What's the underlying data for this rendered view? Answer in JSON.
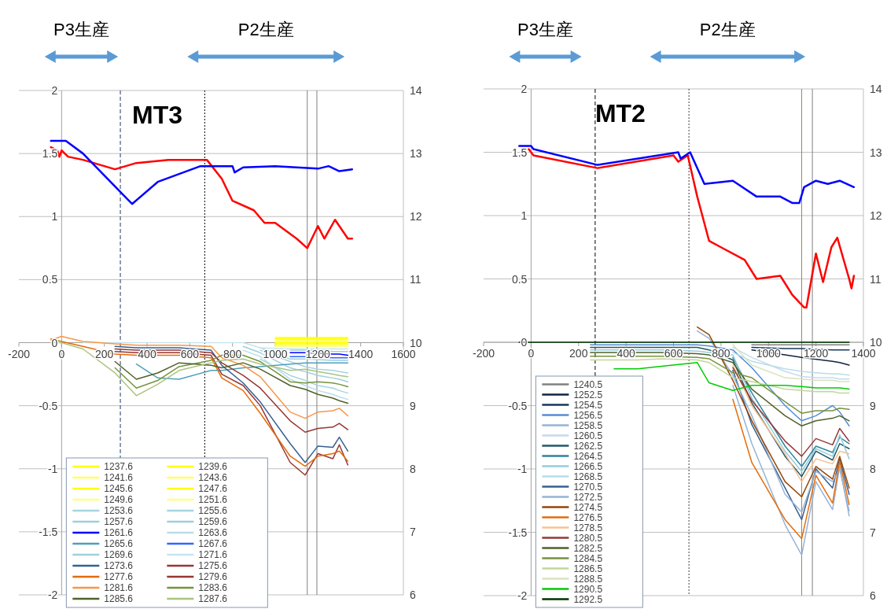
{
  "chart_data": [
    {
      "type": "line",
      "title": "MT3",
      "annotations": [
        "P3生産",
        "P2生産"
      ],
      "x": [
        -50,
        0,
        100,
        250,
        350,
        450,
        550,
        700,
        750,
        850,
        930,
        1070,
        1140,
        1200,
        1270,
        1300,
        1340
      ],
      "xlim": [
        -200,
        1600
      ],
      "xticks": [
        -200,
        0,
        200,
        400,
        600,
        800,
        1000,
        1200,
        1400,
        1600
      ],
      "ylim": [
        -2,
        2
      ],
      "yticks": [
        -2,
        -1.5,
        -1,
        -0.5,
        0,
        0.5,
        1,
        1.5,
        2
      ],
      "y2lim": [
        6,
        14
      ],
      "y2ticks": [
        6,
        7,
        8,
        9,
        10,
        11,
        12,
        13,
        14
      ],
      "grid": "y",
      "legend": "bottom left",
      "ref_lines": [
        {
          "axis": "x",
          "value": 275,
          "color": "#1f3864",
          "line_style": "dashed"
        },
        {
          "axis": "x",
          "value": 670,
          "color": "#000000",
          "line_style": "dotted"
        },
        {
          "axis": "x",
          "value": 1150,
          "color": "#808080",
          "line_style": "solid"
        },
        {
          "axis": "x",
          "value": 1195,
          "color": "#808080",
          "line_style": "solid"
        }
      ],
      "series": [
        {
          "name": "1237.6",
          "color": "#ffff00",
          "x": [
            1000,
            1100,
            1200,
            1300,
            1340
          ],
          "values": [
            0.04,
            0.04,
            0.04,
            0.04,
            0.04
          ]
        },
        {
          "name": "1239.6",
          "color": "#ffff00",
          "x": [
            1000,
            1100,
            1200,
            1300,
            1340
          ],
          "values": [
            0.03,
            0.03,
            0.03,
            0.03,
            0.03
          ]
        },
        {
          "name": "1241.6",
          "color": "#ffff66",
          "x": [
            1000,
            1100,
            1200,
            1300,
            1340
          ],
          "values": [
            0.02,
            0.02,
            0.02,
            0.02,
            0.02
          ]
        },
        {
          "name": "1243.6",
          "color": "#ffff66",
          "x": [
            1000,
            1100,
            1200,
            1300,
            1340
          ],
          "values": [
            0.01,
            0.01,
            0.01,
            0.01,
            0.01
          ]
        },
        {
          "name": "1245.6",
          "color": "#ffff00",
          "x": [
            1000,
            1100,
            1200,
            1300,
            1340
          ],
          "values": [
            0,
            0,
            0,
            0,
            0
          ]
        },
        {
          "name": "1247.6",
          "color": "#ffff00",
          "x": [
            1000,
            1100,
            1200,
            1300,
            1340
          ],
          "values": [
            -0.01,
            -0.01,
            -0.01,
            -0.01,
            -0.01
          ]
        },
        {
          "name": "1249.6",
          "color": "#ffff80",
          "x": [
            1000,
            1100,
            1200,
            1300,
            1340
          ],
          "values": [
            -0.02,
            -0.02,
            -0.02,
            -0.02,
            -0.02
          ]
        },
        {
          "name": "1251.6",
          "color": "#ffff80",
          "x": [
            1000,
            1100,
            1200,
            1300,
            1340
          ],
          "values": [
            -0.03,
            -0.03,
            -0.03,
            -0.03,
            -0.03
          ]
        },
        {
          "name": "1253.6",
          "color": "#a5d5e0",
          "values": [
            null,
            null,
            null,
            null,
            null,
            null,
            null,
            null,
            null,
            null,
            -0.13,
            -0.26,
            -0.3,
            -0.34,
            -0.36,
            -0.38,
            -0.4
          ]
        },
        {
          "name": "1255.6",
          "color": "#a5d5e0",
          "values": [
            null,
            null,
            null,
            null,
            null,
            null,
            null,
            null,
            null,
            null,
            -0.06,
            -0.15,
            -0.19,
            -0.21,
            -0.22,
            -0.23,
            -0.24
          ]
        },
        {
          "name": "1257.6",
          "color": "#9fcfdc",
          "values": [
            null,
            null,
            null,
            null,
            null,
            null,
            null,
            null,
            null,
            -0.03,
            -0.08,
            -0.2,
            -0.23,
            -0.26,
            -0.28,
            -0.29,
            -0.31
          ]
        },
        {
          "name": "1259.6",
          "color": "#9fcfdc",
          "x": [
            930,
            1070,
            1140,
            1270,
            1300,
            1340
          ],
          "values": [
            -0.04,
            -0.13,
            -0.13,
            -0.14,
            -0.14,
            -0.14
          ]
        },
        {
          "name": "1261.6",
          "color": "#0000ff",
          "x": [
            1070,
            1140,
            1270,
            1300,
            1340
          ],
          "values": [
            -0.08,
            -0.08,
            -0.09,
            -0.09,
            -0.1
          ]
        },
        {
          "name": "1263.6",
          "color": "#b8dde8",
          "values": [
            null,
            null,
            null,
            null,
            null,
            null,
            null,
            null,
            null,
            -0.06,
            -0.11,
            -0.29,
            -0.34,
            -0.38,
            -0.41,
            -0.43,
            -0.45
          ]
        },
        {
          "name": "1265.6",
          "color": "#4f9fbc",
          "values": [
            null,
            null,
            null,
            null,
            -0.17,
            -0.28,
            -0.29,
            -0.22,
            -0.22,
            -0.2,
            -0.19,
            -0.17,
            -0.16,
            -0.16,
            -0.16,
            -0.16,
            -0.16
          ]
        },
        {
          "name": "1267.6",
          "color": "#3366ff",
          "x": [
            1070,
            1140,
            1270,
            1300,
            1340
          ],
          "values": [
            -0.11,
            -0.11,
            -0.12,
            -0.12,
            -0.12
          ]
        },
        {
          "name": "1269.6",
          "color": "#9fd0dc",
          "x": [
            1070,
            1140,
            1270,
            1300,
            1340
          ],
          "values": [
            -0.06,
            -0.06,
            -0.07,
            -0.07,
            -0.07
          ]
        },
        {
          "name": "1271.6",
          "color": "#c5e5f0",
          "values": [
            null,
            null,
            0,
            0,
            0,
            0,
            0,
            0,
            0,
            0,
            -0.04,
            -0.05,
            -0.05,
            -0.05,
            -0.05,
            -0.05,
            -0.05
          ]
        },
        {
          "name": "1273.6",
          "color": "#366092",
          "values": [
            null,
            null,
            null,
            -0.03,
            -0.04,
            -0.04,
            -0.04,
            -0.06,
            -0.18,
            -0.32,
            -0.47,
            -0.8,
            -0.95,
            -0.82,
            -0.83,
            -0.75,
            -0.86
          ]
        },
        {
          "name": "1275.6",
          "color": "#963634",
          "values": [
            null,
            null,
            null,
            -0.07,
            -0.08,
            -0.08,
            -0.08,
            -0.1,
            -0.25,
            -0.34,
            -0.5,
            -0.95,
            -1.05,
            -0.88,
            -0.92,
            -0.81,
            -0.97
          ]
        },
        {
          "name": "1277.6",
          "color": "#e26b0a",
          "values": [
            0.03,
            0.01,
            -0.03,
            -0.09,
            -0.1,
            -0.1,
            -0.1,
            -0.12,
            -0.28,
            -0.38,
            -0.56,
            -0.9,
            -0.98,
            -0.9,
            -0.88,
            -0.86,
            -0.94
          ]
        },
        {
          "name": "1279.6",
          "color": "#963634",
          "values": [
            null,
            null,
            null,
            -0.05,
            -0.06,
            -0.06,
            -0.06,
            -0.08,
            -0.16,
            -0.26,
            -0.36,
            -0.62,
            -0.71,
            -0.68,
            -0.67,
            -0.64,
            -0.69
          ]
        },
        {
          "name": "1281.6",
          "color": "#f79646",
          "values": [
            0.02,
            0.05,
            0.01,
            -0.01,
            -0.02,
            -0.02,
            -0.02,
            -0.03,
            -0.12,
            -0.18,
            -0.27,
            -0.55,
            -0.6,
            -0.55,
            -0.54,
            -0.52,
            -0.58
          ]
        },
        {
          "name": "1283.6",
          "color": "#76933c",
          "values": [
            null,
            null,
            null,
            -0.2,
            -0.36,
            -0.3,
            -0.19,
            -0.14,
            -0.1,
            -0.1,
            -0.15,
            -0.31,
            -0.32,
            -0.31,
            -0.32,
            -0.33,
            -0.35
          ]
        },
        {
          "name": "1285.6",
          "color": "#4f6228",
          "values": [
            null,
            null,
            null,
            -0.15,
            -0.29,
            -0.24,
            -0.16,
            -0.18,
            -0.2,
            -0.16,
            -0.21,
            -0.34,
            -0.37,
            -0.41,
            -0.44,
            -0.46,
            -0.48
          ]
        },
        {
          "name": "1287.6",
          "color": "#a9c47f",
          "values": [
            0,
            0,
            -0.05,
            -0.24,
            -0.42,
            -0.33,
            -0.22,
            -0.16,
            -0.14,
            -0.13,
            -0.17,
            -0.22,
            -0.21,
            -0.23,
            -0.25,
            -0.26,
            -0.27
          ]
        },
        {
          "color": "#ff0000",
          "axis": "y2",
          "x": [
            -50,
            -20,
            -10,
            0,
            30,
            100,
            250,
            350,
            500,
            680,
            750,
            800,
            900,
            950,
            1000,
            1100,
            1150,
            1200,
            1230,
            1280,
            1340,
            1360
          ],
          "values": [
            13.1,
            13.05,
            12.95,
            13.05,
            12.95,
            12.9,
            12.75,
            12.85,
            12.9,
            12.9,
            12.6,
            12.25,
            12.1,
            11.9,
            11.9,
            11.65,
            11.5,
            11.85,
            11.65,
            11.95,
            11.65,
            11.65
          ]
        },
        {
          "color": "#0000ff",
          "axis": "y2",
          "x": [
            -50,
            20,
            100,
            330,
            450,
            650,
            750,
            800,
            810,
            850,
            1000,
            1200,
            1250,
            1300,
            1360
          ],
          "values": [
            13.2,
            13.2,
            13.0,
            12.2,
            12.55,
            12.8,
            12.8,
            12.8,
            12.7,
            12.78,
            12.8,
            12.76,
            12.8,
            12.72,
            12.75
          ]
        }
      ]
    },
    {
      "type": "line",
      "title": "MT2",
      "annotations": [
        "P3生産",
        "P2生産"
      ],
      "x": [
        -50,
        0,
        100,
        250,
        350,
        450,
        550,
        700,
        750,
        850,
        930,
        1070,
        1140,
        1200,
        1270,
        1300,
        1340
      ],
      "xlim": [
        -200,
        1400
      ],
      "xticks": [
        -200,
        0,
        200,
        400,
        600,
        800,
        1000,
        1200,
        1400
      ],
      "ylim": [
        -2,
        2
      ],
      "yticks": [
        -2,
        -1.5,
        -1,
        -0.5,
        0,
        0.5,
        1,
        1.5,
        2
      ],
      "y2lim": [
        6,
        14
      ],
      "y2ticks": [
        6,
        7,
        8,
        9,
        10,
        11,
        12,
        13,
        14
      ],
      "grid": "y",
      "legend": "bottom left",
      "ref_lines": [
        {
          "axis": "x",
          "value": 270,
          "color": "#000000",
          "line_style": "dashed"
        },
        {
          "axis": "x",
          "value": 665,
          "color": "#404040",
          "line_style": "dotted"
        },
        {
          "axis": "x",
          "value": 1140,
          "color": "#9c8a4a",
          "line_style": "solid"
        },
        {
          "axis": "x",
          "value": 1185,
          "color": "#808080",
          "line_style": "solid"
        }
      ],
      "series": [
        {
          "name": "1240.5",
          "color": "#808080",
          "values": [
            null,
            null,
            null,
            null,
            null,
            null,
            null,
            null,
            null,
            null,
            -0.02,
            -0.02,
            -0.02,
            -0.02,
            -0.02,
            -0.02,
            -0.02
          ]
        },
        {
          "name": "1252.5",
          "color": "#0f243e",
          "x": [
            930,
            1070,
            1140,
            1270,
            1300,
            1340
          ],
          "values": [
            -0.06,
            -0.1,
            -0.12,
            -0.15,
            -0.16,
            -0.18
          ]
        },
        {
          "name": "1254.5",
          "color": "#17375e",
          "x": [
            930,
            1070,
            1140,
            1270,
            1300,
            1340
          ],
          "values": [
            -0.04,
            -0.05,
            -0.05,
            -0.06,
            -0.06,
            -0.06
          ]
        },
        {
          "name": "1256.5",
          "color": "#558ed5",
          "values": [
            null,
            null,
            null,
            -0.02,
            -0.02,
            -0.02,
            -0.02,
            -0.02,
            -0.03,
            -0.06,
            -0.2,
            -0.5,
            -0.62,
            -0.58,
            -0.5,
            -0.55,
            -0.66
          ]
        },
        {
          "name": "1258.5",
          "color": "#95b3d7",
          "values": [
            null,
            null,
            null,
            null,
            null,
            null,
            null,
            null,
            null,
            -0.34,
            -0.8,
            -1.44,
            -1.68,
            -1.1,
            -1.32,
            -0.98,
            -1.37
          ]
        },
        {
          "name": "1260.5",
          "color": "#c6d9f1",
          "values": [
            null,
            null,
            null,
            null,
            null,
            null,
            null,
            null,
            null,
            -0.04,
            -0.12,
            -0.23,
            -0.27,
            -0.28,
            -0.28,
            -0.29,
            -0.29
          ]
        },
        {
          "name": "1262.5",
          "color": "#215967",
          "values": [
            null,
            null,
            null,
            -0.04,
            -0.04,
            -0.04,
            -0.04,
            -0.04,
            -0.06,
            -0.14,
            -0.48,
            -0.9,
            -1.06,
            -0.86,
            -0.93,
            -0.8,
            -0.84
          ]
        },
        {
          "name": "1264.5",
          "color": "#31859c",
          "values": [
            null,
            null,
            null,
            null,
            null,
            null,
            null,
            null,
            null,
            -0.12,
            -0.4,
            -0.82,
            -0.98,
            -0.82,
            -0.87,
            -0.75,
            -0.8
          ]
        },
        {
          "name": "1266.5",
          "color": "#93cddd",
          "values": [
            null,
            null,
            null,
            -0.06,
            -0.06,
            -0.06,
            -0.06,
            -0.07,
            -0.08,
            -0.1,
            -0.44,
            -0.86,
            -1.02,
            -0.84,
            -0.9,
            -0.73,
            -0.92
          ]
        },
        {
          "name": "1268.5",
          "color": "#b7dee8",
          "values": [
            null,
            null,
            null,
            null,
            null,
            null,
            null,
            null,
            null,
            -0.08,
            -0.15,
            -0.21,
            -0.23,
            -0.24,
            -0.25,
            -0.25,
            -0.26
          ]
        },
        {
          "name": "1270.5",
          "color": "#366092",
          "values": [
            null,
            null,
            null,
            null,
            null,
            null,
            null,
            null,
            null,
            -0.22,
            -0.65,
            -1.15,
            -1.4,
            -1.0,
            -1.15,
            -0.92,
            -1.2
          ]
        },
        {
          "name": "1272.5",
          "color": "#95b3d7",
          "values": [
            null,
            null,
            null,
            null,
            null,
            null,
            null,
            0.09,
            0.03,
            -0.26,
            -0.58,
            -1.2,
            -1.34,
            -1.02,
            -1.1,
            -1.0,
            -1.33
          ]
        },
        {
          "name": "1274.5",
          "color": "#974706",
          "values": [
            null,
            null,
            null,
            null,
            null,
            null,
            null,
            0.12,
            0.06,
            -0.3,
            -0.62,
            -1.1,
            -1.22,
            -0.98,
            -1.08,
            -0.9,
            -1.15
          ]
        },
        {
          "name": "1276.5",
          "color": "#e46c0a",
          "values": [
            null,
            null,
            null,
            null,
            null,
            null,
            null,
            null,
            null,
            -0.45,
            -0.95,
            -1.4,
            -1.55,
            -1.05,
            -1.27,
            -0.94,
            -1.28
          ]
        },
        {
          "name": "1278.5",
          "color": "#fac090",
          "values": [
            null,
            null,
            null,
            null,
            null,
            null,
            null,
            null,
            null,
            -0.18,
            -0.5,
            -0.88,
            -1.1,
            -0.92,
            -0.96,
            -0.86,
            -0.88
          ]
        },
        {
          "name": "1280.5",
          "color": "#953735",
          "values": [
            null,
            null,
            null,
            null,
            null,
            null,
            null,
            null,
            null,
            -0.2,
            -0.46,
            -0.78,
            -0.9,
            -0.76,
            -0.81,
            -0.68,
            -0.78
          ]
        },
        {
          "name": "1282.5",
          "color": "#4f6228",
          "values": [
            null,
            null,
            null,
            -0.08,
            -0.08,
            -0.08,
            -0.08,
            -0.09,
            -0.1,
            -0.16,
            -0.37,
            -0.58,
            -0.66,
            -0.62,
            -0.6,
            -0.58,
            -0.62
          ]
        },
        {
          "name": "1284.5",
          "color": "#77933c",
          "values": [
            null,
            null,
            null,
            -0.11,
            -0.11,
            -0.11,
            -0.11,
            -0.12,
            -0.13,
            -0.24,
            -0.28,
            -0.47,
            -0.56,
            -0.54,
            -0.54,
            -0.52,
            -0.53
          ]
        },
        {
          "name": "1286.5",
          "color": "#c3d69b",
          "values": [
            null,
            null,
            null,
            -0.14,
            -0.14,
            -0.14,
            -0.13,
            -0.14,
            -0.16,
            -0.28,
            -0.31,
            -0.37,
            -0.38,
            -0.39,
            -0.39,
            -0.4,
            -0.4
          ]
        },
        {
          "name": "1288.5",
          "color": "#d7e4bd",
          "values": [
            null,
            null,
            null,
            null,
            null,
            null,
            null,
            null,
            null,
            -0.02,
            -0.18,
            -0.28,
            -0.29,
            -0.3,
            -0.3,
            -0.31,
            -0.31
          ]
        },
        {
          "name": "1290.5",
          "color": "#00cc00",
          "values": [
            null,
            null,
            null,
            null,
            -0.21,
            -0.21,
            -0.19,
            -0.16,
            -0.32,
            -0.38,
            -0.34,
            -0.34,
            -0.35,
            -0.36,
            -0.36,
            -0.36,
            -0.37
          ]
        },
        {
          "name": "1292.5",
          "color": "#003300",
          "values": [
            0,
            0,
            0,
            0,
            0,
            0,
            0,
            0,
            0,
            0,
            0,
            0,
            0,
            0,
            0,
            0,
            0
          ]
        },
        {
          "color": "#ff0000",
          "axis": "y2",
          "x": [
            -10,
            10,
            280,
            600,
            620,
            660,
            700,
            750,
            800,
            900,
            950,
            1050,
            1100,
            1150,
            1160,
            1200,
            1230,
            1265,
            1290,
            1340,
            1350,
            1360
          ],
          "values": [
            13.05,
            12.95,
            12.75,
            12.95,
            12.85,
            12.95,
            12.3,
            11.6,
            11.5,
            11.3,
            11.0,
            11.05,
            10.75,
            10.55,
            10.55,
            11.4,
            10.95,
            11.5,
            11.65,
            11.0,
            10.85,
            11.05
          ]
        },
        {
          "color": "#0000ff",
          "axis": "y2",
          "x": [
            -50,
            0,
            10,
            280,
            620,
            630,
            670,
            730,
            850,
            950,
            1050,
            1100,
            1130,
            1150,
            1200,
            1250,
            1300,
            1360
          ],
          "values": [
            13.1,
            13.1,
            13.05,
            12.8,
            13.0,
            12.9,
            13.0,
            12.5,
            12.55,
            12.3,
            12.3,
            12.2,
            12.2,
            12.45,
            12.55,
            12.5,
            12.55,
            12.45
          ]
        }
      ]
    }
  ]
}
